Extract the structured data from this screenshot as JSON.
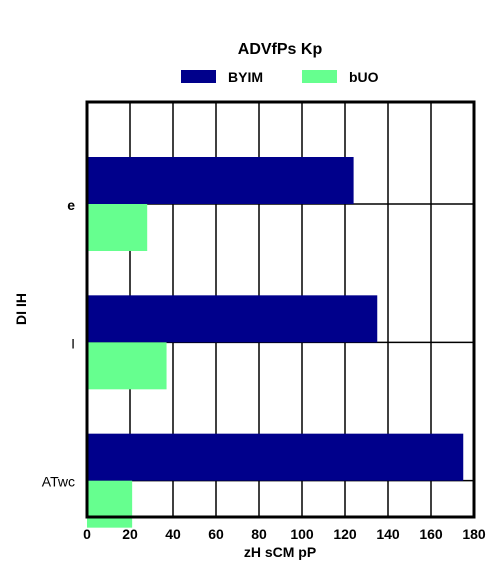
{
  "chart_data": {
    "type": "bar",
    "orientation": "horizontal",
    "title": "ADVfPs Kp",
    "xlabel": "zH sCM pP",
    "ylabel": "DI IH",
    "categories": [
      "e",
      "I",
      "ATwc"
    ],
    "series": [
      {
        "name": "BYIM",
        "color": "#00008b",
        "values": [
          124,
          135,
          175
        ]
      },
      {
        "name": "bUO",
        "color": "#66ff8f",
        "values": [
          28,
          37,
          21
        ]
      }
    ],
    "xlim": [
      0,
      180
    ],
    "xticks": [
      0,
      20,
      40,
      60,
      80,
      100,
      120,
      140,
      160,
      180
    ],
    "grid": true,
    "legend": "top-center"
  }
}
